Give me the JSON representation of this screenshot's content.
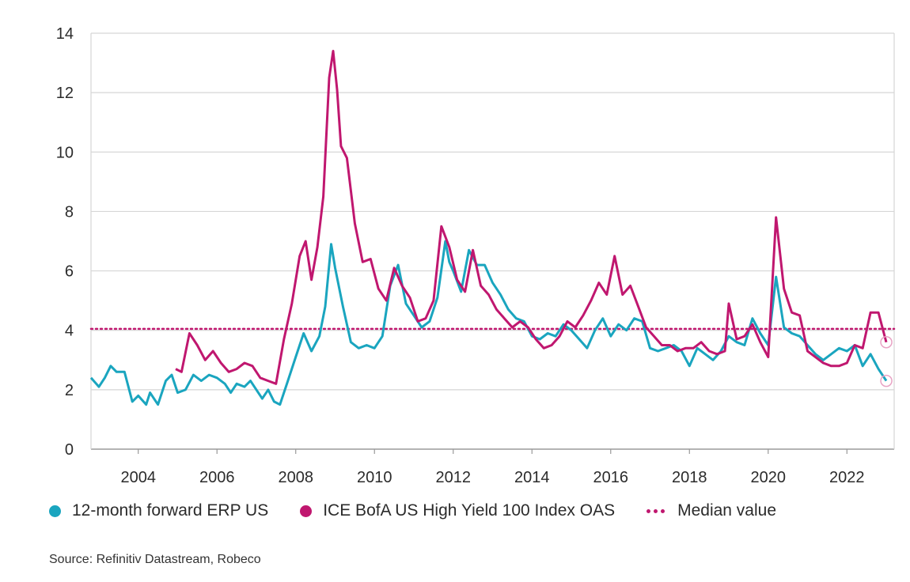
{
  "chart_data": {
    "type": "line",
    "title": "",
    "xlabel": "",
    "ylabel": "",
    "xlim": [
      2002.8,
      2023.2
    ],
    "ylim": [
      0,
      14
    ],
    "yticks": [
      0,
      2,
      4,
      6,
      8,
      10,
      12,
      14
    ],
    "xticks": [
      2004,
      2006,
      2008,
      2010,
      2012,
      2014,
      2016,
      2018,
      2020,
      2022
    ],
    "grid": "horizontal",
    "legend_position": "bottom",
    "median_value": 4.05,
    "series": [
      {
        "name": "12-month forward ERP US",
        "color": "#1aa5bf",
        "points": [
          [
            2002.8,
            2.4
          ],
          [
            2003.0,
            2.1
          ],
          [
            2003.15,
            2.4
          ],
          [
            2003.3,
            2.8
          ],
          [
            2003.45,
            2.6
          ],
          [
            2003.65,
            2.6
          ],
          [
            2003.85,
            1.6
          ],
          [
            2004.0,
            1.8
          ],
          [
            2004.2,
            1.5
          ],
          [
            2004.3,
            1.9
          ],
          [
            2004.5,
            1.5
          ],
          [
            2004.7,
            2.3
          ],
          [
            2004.85,
            2.5
          ],
          [
            2005.0,
            1.9
          ],
          [
            2005.2,
            2.0
          ],
          [
            2005.4,
            2.5
          ],
          [
            2005.6,
            2.3
          ],
          [
            2005.8,
            2.5
          ],
          [
            2006.0,
            2.4
          ],
          [
            2006.2,
            2.2
          ],
          [
            2006.35,
            1.9
          ],
          [
            2006.5,
            2.2
          ],
          [
            2006.7,
            2.1
          ],
          [
            2006.85,
            2.3
          ],
          [
            2007.0,
            2.0
          ],
          [
            2007.15,
            1.7
          ],
          [
            2007.3,
            2.0
          ],
          [
            2007.45,
            1.6
          ],
          [
            2007.6,
            1.5
          ],
          [
            2007.8,
            2.3
          ],
          [
            2008.0,
            3.1
          ],
          [
            2008.1,
            3.5
          ],
          [
            2008.2,
            3.9
          ],
          [
            2008.4,
            3.3
          ],
          [
            2008.6,
            3.8
          ],
          [
            2008.75,
            4.8
          ],
          [
            2008.9,
            6.9
          ],
          [
            2009.0,
            6.1
          ],
          [
            2009.2,
            4.8
          ],
          [
            2009.4,
            3.6
          ],
          [
            2009.6,
            3.4
          ],
          [
            2009.8,
            3.5
          ],
          [
            2010.0,
            3.4
          ],
          [
            2010.2,
            3.8
          ],
          [
            2010.4,
            5.5
          ],
          [
            2010.6,
            6.2
          ],
          [
            2010.8,
            4.9
          ],
          [
            2011.0,
            4.5
          ],
          [
            2011.2,
            4.1
          ],
          [
            2011.4,
            4.3
          ],
          [
            2011.6,
            5.1
          ],
          [
            2011.8,
            7.0
          ],
          [
            2011.9,
            6.3
          ],
          [
            2012.0,
            6.0
          ],
          [
            2012.2,
            5.3
          ],
          [
            2012.4,
            6.7
          ],
          [
            2012.6,
            6.2
          ],
          [
            2012.8,
            6.2
          ],
          [
            2013.0,
            5.6
          ],
          [
            2013.2,
            5.2
          ],
          [
            2013.4,
            4.7
          ],
          [
            2013.6,
            4.4
          ],
          [
            2013.8,
            4.3
          ],
          [
            2014.0,
            3.8
          ],
          [
            2014.2,
            3.7
          ],
          [
            2014.4,
            3.9
          ],
          [
            2014.6,
            3.8
          ],
          [
            2014.8,
            4.2
          ],
          [
            2015.0,
            4.0
          ],
          [
            2015.2,
            3.7
          ],
          [
            2015.4,
            3.4
          ],
          [
            2015.6,
            4.0
          ],
          [
            2015.8,
            4.4
          ],
          [
            2016.0,
            3.8
          ],
          [
            2016.2,
            4.2
          ],
          [
            2016.4,
            4.0
          ],
          [
            2016.6,
            4.4
          ],
          [
            2016.8,
            4.3
          ],
          [
            2017.0,
            3.4
          ],
          [
            2017.2,
            3.3
          ],
          [
            2017.4,
            3.4
          ],
          [
            2017.6,
            3.5
          ],
          [
            2017.8,
            3.3
          ],
          [
            2018.0,
            2.8
          ],
          [
            2018.2,
            3.4
          ],
          [
            2018.4,
            3.2
          ],
          [
            2018.6,
            3.0
          ],
          [
            2018.8,
            3.3
          ],
          [
            2019.0,
            3.8
          ],
          [
            2019.2,
            3.6
          ],
          [
            2019.4,
            3.5
          ],
          [
            2019.6,
            4.4
          ],
          [
            2019.8,
            3.9
          ],
          [
            2020.0,
            3.5
          ],
          [
            2020.2,
            5.8
          ],
          [
            2020.4,
            4.1
          ],
          [
            2020.6,
            3.9
          ],
          [
            2020.8,
            3.8
          ],
          [
            2021.0,
            3.5
          ],
          [
            2021.2,
            3.2
          ],
          [
            2021.4,
            3.0
          ],
          [
            2021.6,
            3.2
          ],
          [
            2021.8,
            3.4
          ],
          [
            2022.0,
            3.3
          ],
          [
            2022.2,
            3.5
          ],
          [
            2022.4,
            2.8
          ],
          [
            2022.6,
            3.2
          ],
          [
            2022.8,
            2.7
          ],
          [
            2023.0,
            2.3
          ]
        ]
      },
      {
        "name": "ICE BofA US High Yield 100 Index OAS",
        "color": "#c0176f",
        "points": [
          [
            2004.95,
            2.7
          ],
          [
            2005.1,
            2.6
          ],
          [
            2005.3,
            3.9
          ],
          [
            2005.5,
            3.5
          ],
          [
            2005.7,
            3.0
          ],
          [
            2005.9,
            3.3
          ],
          [
            2006.1,
            2.9
          ],
          [
            2006.3,
            2.6
          ],
          [
            2006.5,
            2.7
          ],
          [
            2006.7,
            2.9
          ],
          [
            2006.9,
            2.8
          ],
          [
            2007.1,
            2.4
          ],
          [
            2007.3,
            2.3
          ],
          [
            2007.5,
            2.2
          ],
          [
            2007.7,
            3.7
          ],
          [
            2007.9,
            4.9
          ],
          [
            2008.1,
            6.5
          ],
          [
            2008.25,
            7.0
          ],
          [
            2008.4,
            5.7
          ],
          [
            2008.55,
            6.8
          ],
          [
            2008.7,
            8.5
          ],
          [
            2008.85,
            12.5
          ],
          [
            2008.95,
            13.4
          ],
          [
            2009.05,
            12.1
          ],
          [
            2009.15,
            10.2
          ],
          [
            2009.3,
            9.8
          ],
          [
            2009.5,
            7.6
          ],
          [
            2009.7,
            6.3
          ],
          [
            2009.9,
            6.4
          ],
          [
            2010.1,
            5.4
          ],
          [
            2010.3,
            5.0
          ],
          [
            2010.5,
            6.1
          ],
          [
            2010.7,
            5.5
          ],
          [
            2010.9,
            5.1
          ],
          [
            2011.1,
            4.3
          ],
          [
            2011.3,
            4.4
          ],
          [
            2011.5,
            5.0
          ],
          [
            2011.7,
            7.5
          ],
          [
            2011.9,
            6.8
          ],
          [
            2012.1,
            5.7
          ],
          [
            2012.3,
            5.3
          ],
          [
            2012.5,
            6.7
          ],
          [
            2012.7,
            5.5
          ],
          [
            2012.9,
            5.2
          ],
          [
            2013.1,
            4.7
          ],
          [
            2013.3,
            4.4
          ],
          [
            2013.5,
            4.1
          ],
          [
            2013.7,
            4.3
          ],
          [
            2013.9,
            4.1
          ],
          [
            2014.1,
            3.7
          ],
          [
            2014.3,
            3.4
          ],
          [
            2014.5,
            3.5
          ],
          [
            2014.7,
            3.8
          ],
          [
            2014.9,
            4.3
          ],
          [
            2015.1,
            4.1
          ],
          [
            2015.3,
            4.5
          ],
          [
            2015.5,
            5.0
          ],
          [
            2015.7,
            5.6
          ],
          [
            2015.9,
            5.2
          ],
          [
            2016.1,
            6.5
          ],
          [
            2016.3,
            5.2
          ],
          [
            2016.5,
            5.5
          ],
          [
            2016.7,
            4.8
          ],
          [
            2016.9,
            4.1
          ],
          [
            2017.1,
            3.8
          ],
          [
            2017.3,
            3.5
          ],
          [
            2017.5,
            3.5
          ],
          [
            2017.7,
            3.3
          ],
          [
            2017.9,
            3.4
          ],
          [
            2018.1,
            3.4
          ],
          [
            2018.3,
            3.6
          ],
          [
            2018.5,
            3.3
          ],
          [
            2018.7,
            3.2
          ],
          [
            2018.9,
            3.3
          ],
          [
            2019.0,
            4.9
          ],
          [
            2019.2,
            3.7
          ],
          [
            2019.4,
            3.8
          ],
          [
            2019.6,
            4.2
          ],
          [
            2019.8,
            3.6
          ],
          [
            2020.0,
            3.1
          ],
          [
            2020.2,
            7.8
          ],
          [
            2020.4,
            5.4
          ],
          [
            2020.6,
            4.6
          ],
          [
            2020.8,
            4.5
          ],
          [
            2021.0,
            3.3
          ],
          [
            2021.2,
            3.1
          ],
          [
            2021.4,
            2.9
          ],
          [
            2021.6,
            2.8
          ],
          [
            2021.8,
            2.8
          ],
          [
            2022.0,
            2.9
          ],
          [
            2022.2,
            3.5
          ],
          [
            2022.4,
            3.4
          ],
          [
            2022.6,
            4.6
          ],
          [
            2022.8,
            4.6
          ],
          [
            2023.0,
            3.6
          ]
        ]
      }
    ],
    "median_label": "Median value"
  },
  "legend": {
    "erp_label": "12-month forward ERP US",
    "oas_label": "ICE BofA US High Yield 100 Index OAS",
    "median_label": "Median value"
  },
  "source": "Source: Refinitiv Datastream, Robeco",
  "colors": {
    "erp": "#1aa5bf",
    "oas": "#c0176f",
    "grid": "#d6d6d6"
  }
}
